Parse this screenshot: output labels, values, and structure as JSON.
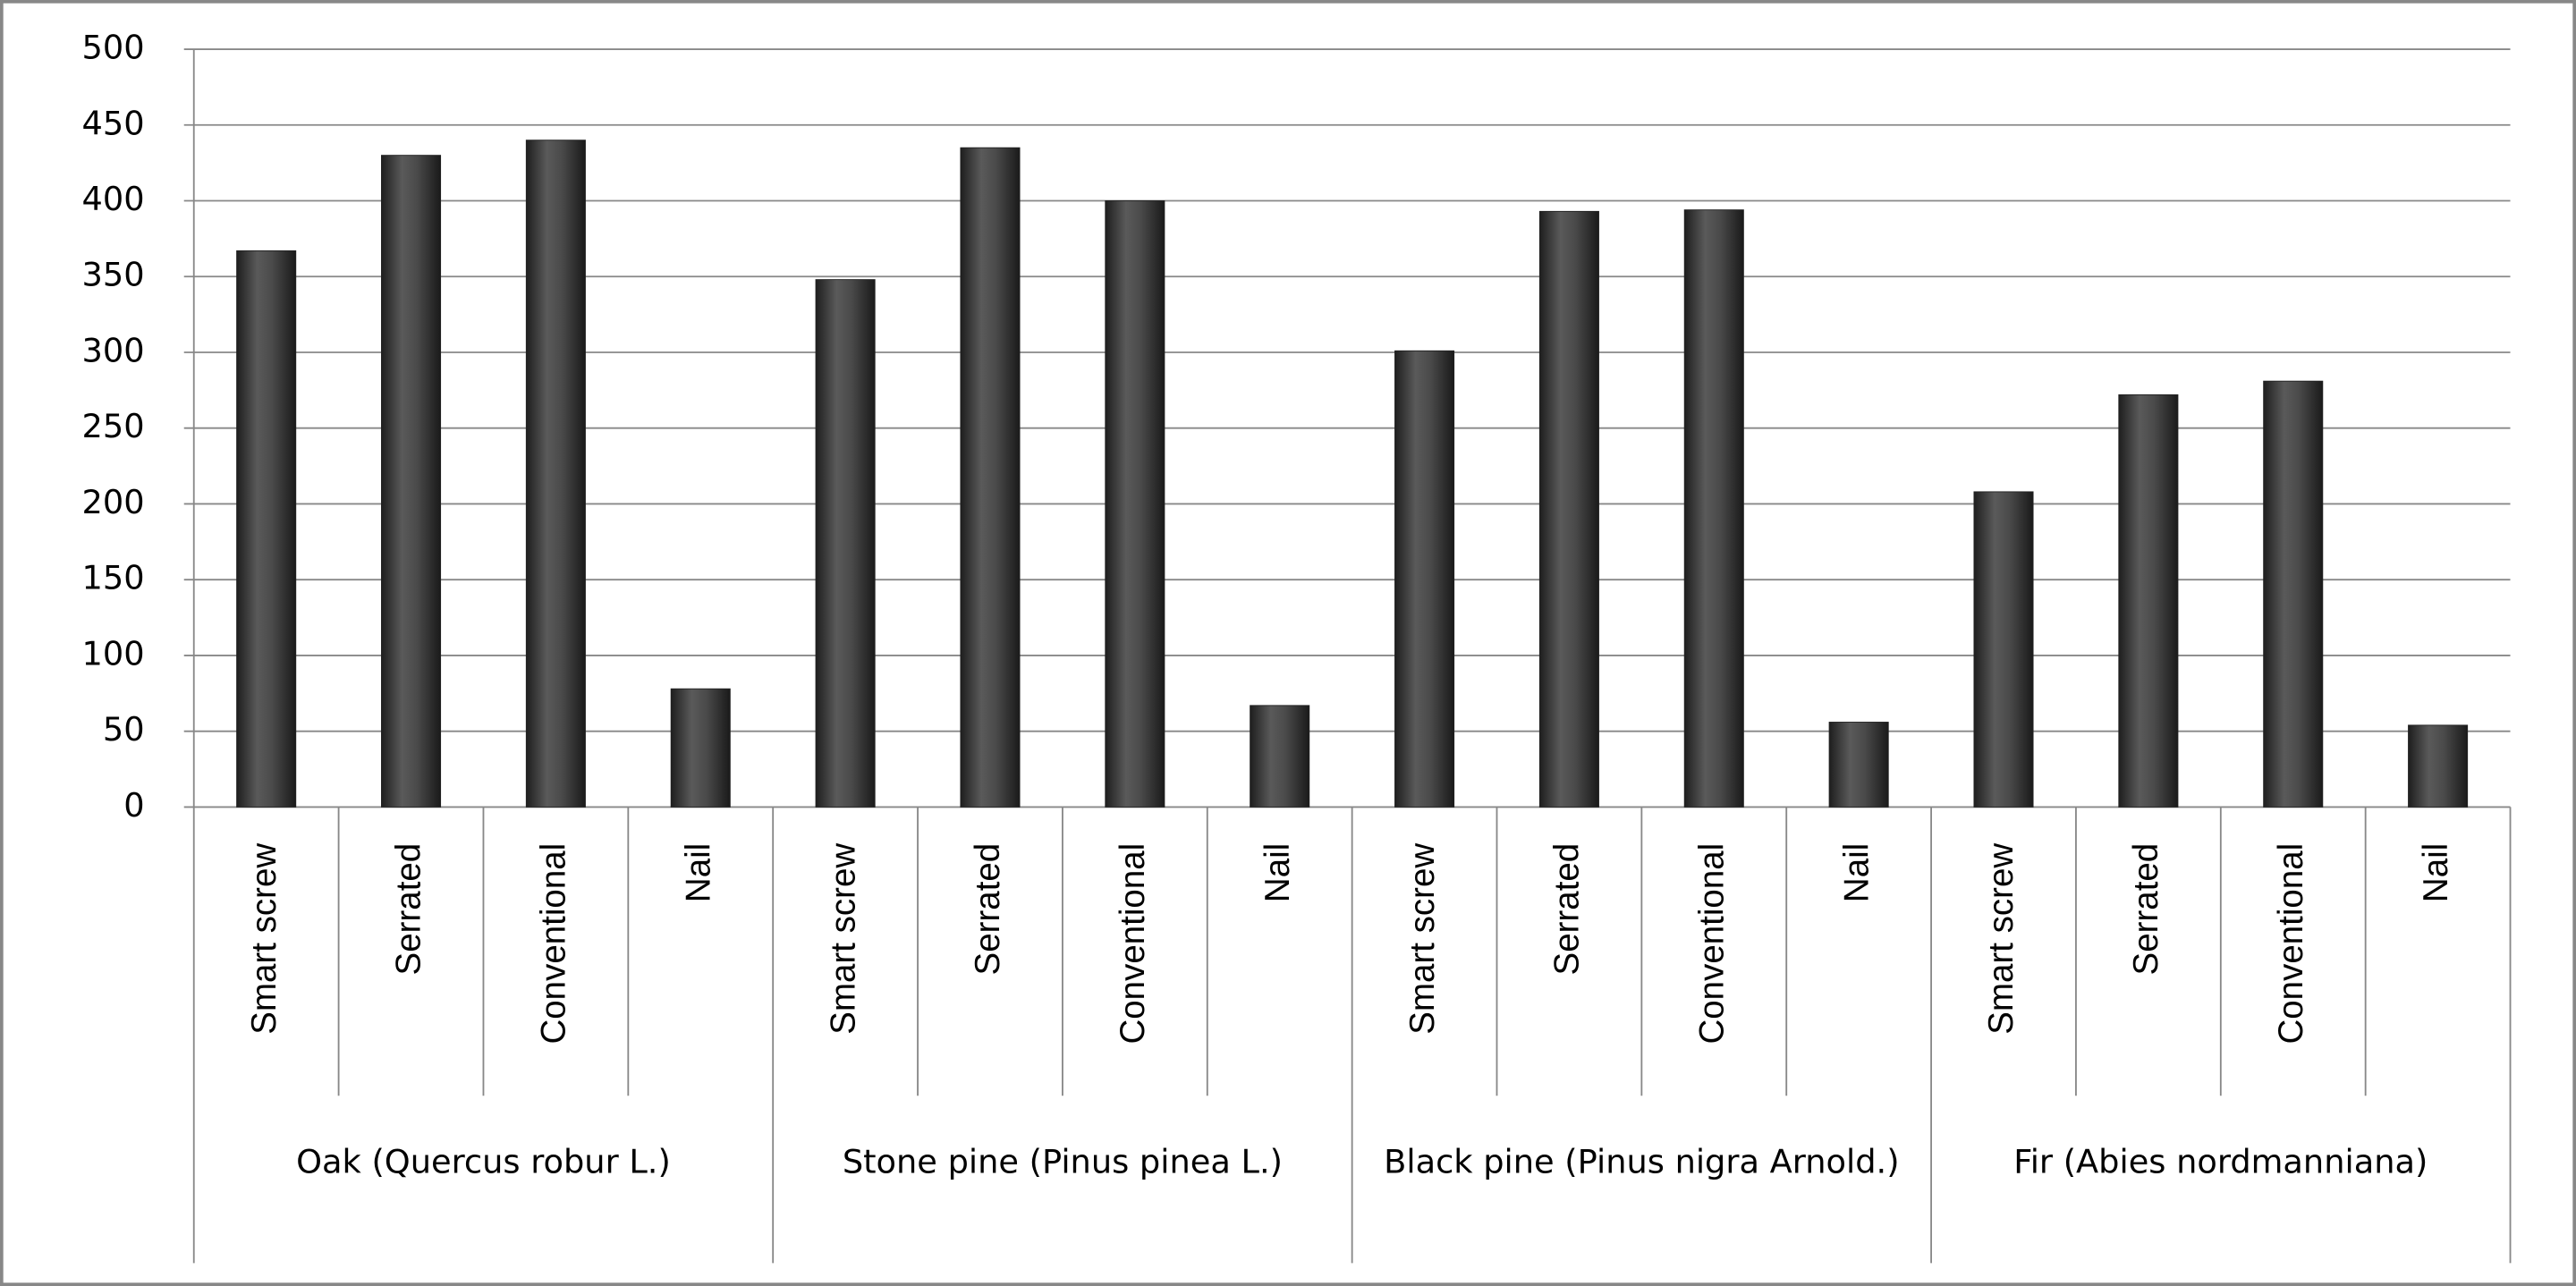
{
  "chart_data": {
    "type": "bar",
    "categories": [
      "Smart screw",
      "Serrated",
      "Conventional",
      "Nail",
      "Smart screw",
      "Serrated",
      "Conventional",
      "Nail",
      "Smart screw",
      "Serrated",
      "Conventional",
      "Nail",
      "Smart screw",
      "Serrated",
      "Conventional",
      "Nail"
    ],
    "groups": [
      "Oak (Quercus robur L.)",
      "Stone pine (Pinus pinea L.)",
      "Black pine (Pinus nigra Arnold.)",
      "Fir (Abies nordmanniana)"
    ],
    "values": [
      367,
      430,
      440,
      78,
      348,
      435,
      400,
      67,
      301,
      393,
      394,
      56,
      208,
      272,
      281,
      54
    ],
    "color": "#3a3a3a",
    "ylim": [
      0,
      500
    ],
    "yticks": [
      0,
      50,
      100,
      150,
      200,
      250,
      300,
      350,
      400,
      450,
      500
    ],
    "grid": true
  }
}
